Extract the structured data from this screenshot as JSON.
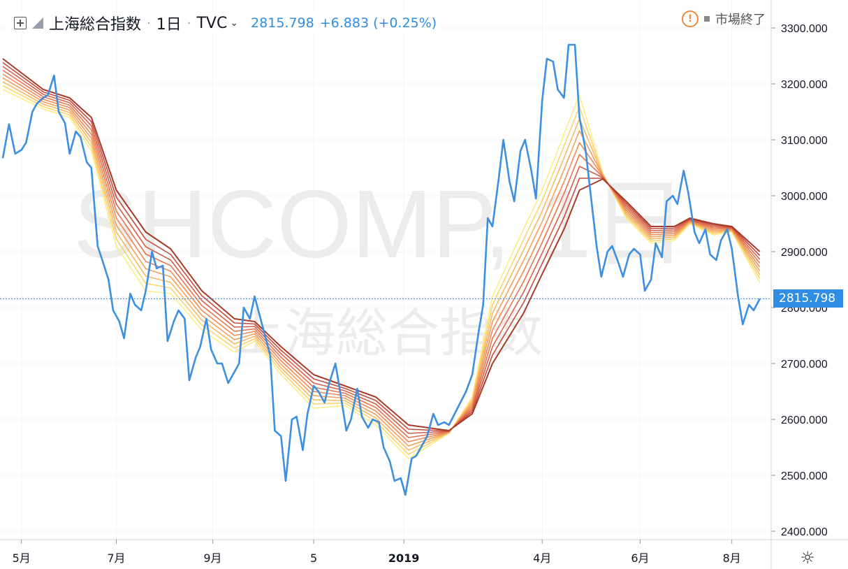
{
  "header": {
    "symbol": "上海総合指数",
    "interval": "1日",
    "exchange": "TVC",
    "price": "2815.798",
    "change": "+6.883 (+0.25%)",
    "market_status": "市場終了"
  },
  "watermark": {
    "ticker": "SHCOMP, 1日",
    "name": "上海総合指数"
  },
  "last_price_label": "2815.798",
  "colors": {
    "price_line": "#3d8fdf",
    "ribbon": [
      "#fdec87",
      "#fbd46f",
      "#f8b864",
      "#f3a05b",
      "#ee8a55",
      "#e5744f",
      "#d6604a",
      "#c44c3c",
      "#a83a28"
    ]
  },
  "chart_data": {
    "type": "line",
    "y_ticks": [
      "3300.000",
      "3200.000",
      "3100.000",
      "3000.000",
      "2900.000",
      "2800.000",
      "2700.000",
      "2600.000",
      "2500.000",
      "2400.000"
    ],
    "ylim": [
      2385,
      3350
    ],
    "x_ticks": [
      "5月",
      "7月",
      "9月",
      "5",
      "2019",
      "4月",
      "6月",
      "8月"
    ],
    "x_tick_dates": [
      "2018-05-01",
      "2018-07-01",
      "2018-09-01",
      "2018-11-05",
      "2019-01-02",
      "2019-04-01",
      "2019-06-03",
      "2019-08-01"
    ],
    "xlim": [
      "2018-04-19",
      "2019-08-20"
    ],
    "series": [
      {
        "key": "price",
        "points": [
          [
            "2018-04-19",
            3067
          ],
          [
            "2018-04-23",
            3128
          ],
          [
            "2018-04-27",
            3075
          ],
          [
            "2018-05-01",
            3082
          ],
          [
            "2018-05-04",
            3095
          ],
          [
            "2018-05-08",
            3150
          ],
          [
            "2018-05-11",
            3165
          ],
          [
            "2018-05-15",
            3175
          ],
          [
            "2018-05-18",
            3180
          ],
          [
            "2018-05-22",
            3215
          ],
          [
            "2018-05-25",
            3150
          ],
          [
            "2018-05-29",
            3130
          ],
          [
            "2018-06-01",
            3075
          ],
          [
            "2018-06-05",
            3115
          ],
          [
            "2018-06-08",
            3105
          ],
          [
            "2018-06-12",
            3060
          ],
          [
            "2018-06-15",
            3050
          ],
          [
            "2018-06-19",
            2910
          ],
          [
            "2018-06-22",
            2885
          ],
          [
            "2018-06-26",
            2850
          ],
          [
            "2018-06-29",
            2795
          ],
          [
            "2018-07-03",
            2775
          ],
          [
            "2018-07-06",
            2745
          ],
          [
            "2018-07-10",
            2825
          ],
          [
            "2018-07-13",
            2805
          ],
          [
            "2018-07-17",
            2795
          ],
          [
            "2018-07-20",
            2830
          ],
          [
            "2018-07-24",
            2900
          ],
          [
            "2018-07-27",
            2870
          ],
          [
            "2018-07-31",
            2875
          ],
          [
            "2018-08-03",
            2740
          ],
          [
            "2018-08-07",
            2775
          ],
          [
            "2018-08-10",
            2795
          ],
          [
            "2018-08-14",
            2780
          ],
          [
            "2018-08-17",
            2670
          ],
          [
            "2018-08-21",
            2710
          ],
          [
            "2018-08-24",
            2730
          ],
          [
            "2018-08-28",
            2780
          ],
          [
            "2018-08-31",
            2725
          ],
          [
            "2018-09-04",
            2700
          ],
          [
            "2018-09-07",
            2700
          ],
          [
            "2018-09-11",
            2665
          ],
          [
            "2018-09-14",
            2680
          ],
          [
            "2018-09-18",
            2700
          ],
          [
            "2018-09-21",
            2800
          ],
          [
            "2018-09-25",
            2780
          ],
          [
            "2018-09-28",
            2820
          ],
          [
            "2018-10-08",
            2715
          ],
          [
            "2018-10-11",
            2580
          ],
          [
            "2018-10-15",
            2570
          ],
          [
            "2018-10-18",
            2490
          ],
          [
            "2018-10-22",
            2600
          ],
          [
            "2018-10-25",
            2605
          ],
          [
            "2018-10-29",
            2545
          ],
          [
            "2018-11-01",
            2610
          ],
          [
            "2018-11-05",
            2660
          ],
          [
            "2018-11-08",
            2650
          ],
          [
            "2018-11-12",
            2630
          ],
          [
            "2018-11-15",
            2665
          ],
          [
            "2018-11-19",
            2700
          ],
          [
            "2018-11-22",
            2650
          ],
          [
            "2018-11-26",
            2580
          ],
          [
            "2018-11-29",
            2600
          ],
          [
            "2018-12-03",
            2655
          ],
          [
            "2018-12-06",
            2605
          ],
          [
            "2018-12-10",
            2585
          ],
          [
            "2018-12-13",
            2600
          ],
          [
            "2018-12-17",
            2595
          ],
          [
            "2018-12-20",
            2550
          ],
          [
            "2018-12-24",
            2525
          ],
          [
            "2018-12-27",
            2490
          ],
          [
            "2018-12-31",
            2495
          ],
          [
            "2019-01-03",
            2465
          ],
          [
            "2019-01-07",
            2530
          ],
          [
            "2019-01-10",
            2535
          ],
          [
            "2019-01-14",
            2555
          ],
          [
            "2019-01-17",
            2570
          ],
          [
            "2019-01-21",
            2610
          ],
          [
            "2019-01-24",
            2590
          ],
          [
            "2019-01-28",
            2595
          ],
          [
            "2019-01-31",
            2590
          ],
          [
            "2019-02-11",
            2650
          ],
          [
            "2019-02-15",
            2680
          ],
          [
            "2019-02-19",
            2755
          ],
          [
            "2019-02-22",
            2805
          ],
          [
            "2019-02-25",
            2960
          ],
          [
            "2019-02-28",
            2945
          ],
          [
            "2019-03-04",
            3030
          ],
          [
            "2019-03-07",
            3100
          ],
          [
            "2019-03-11",
            3025
          ],
          [
            "2019-03-14",
            2990
          ],
          [
            "2019-03-18",
            3080
          ],
          [
            "2019-03-21",
            3100
          ],
          [
            "2019-03-25",
            3045
          ],
          [
            "2019-03-28",
            2995
          ],
          [
            "2019-04-01",
            3170
          ],
          [
            "2019-04-04",
            3245
          ],
          [
            "2019-04-08",
            3240
          ],
          [
            "2019-04-11",
            3190
          ],
          [
            "2019-04-15",
            3175
          ],
          [
            "2019-04-18",
            3270
          ],
          [
            "2019-04-22",
            3270
          ],
          [
            "2019-04-25",
            3140
          ],
          [
            "2019-04-29",
            3080
          ],
          [
            "2019-05-06",
            2910
          ],
          [
            "2019-05-09",
            2855
          ],
          [
            "2019-05-13",
            2900
          ],
          [
            "2019-05-16",
            2910
          ],
          [
            "2019-05-20",
            2880
          ],
          [
            "2019-05-23",
            2855
          ],
          [
            "2019-05-27",
            2895
          ],
          [
            "2019-05-30",
            2905
          ],
          [
            "2019-06-03",
            2895
          ],
          [
            "2019-06-06",
            2830
          ],
          [
            "2019-06-10",
            2850
          ],
          [
            "2019-06-13",
            2915
          ],
          [
            "2019-06-17",
            2890
          ],
          [
            "2019-06-20",
            2990
          ],
          [
            "2019-06-24",
            3000
          ],
          [
            "2019-06-27",
            2985
          ],
          [
            "2019-07-01",
            3045
          ],
          [
            "2019-07-04",
            3005
          ],
          [
            "2019-07-08",
            2935
          ],
          [
            "2019-07-11",
            2915
          ],
          [
            "2019-07-15",
            2940
          ],
          [
            "2019-07-18",
            2895
          ],
          [
            "2019-07-22",
            2885
          ],
          [
            "2019-07-25",
            2920
          ],
          [
            "2019-07-29",
            2940
          ],
          [
            "2019-08-01",
            2905
          ],
          [
            "2019-08-05",
            2820
          ],
          [
            "2019-08-08",
            2770
          ],
          [
            "2019-08-12",
            2805
          ],
          [
            "2019-08-15",
            2795
          ],
          [
            "2019-08-19",
            2815.798
          ]
        ]
      },
      {
        "key": "ribbon-fast",
        "points": [
          [
            "2018-04-19",
            3190
          ],
          [
            "2018-05-15",
            3155
          ],
          [
            "2018-06-01",
            3140
          ],
          [
            "2018-06-15",
            3080
          ],
          [
            "2018-07-01",
            2910
          ],
          [
            "2018-07-20",
            2830
          ],
          [
            "2018-08-05",
            2825
          ],
          [
            "2018-08-25",
            2760
          ],
          [
            "2018-09-15",
            2720
          ],
          [
            "2018-09-28",
            2740
          ],
          [
            "2018-10-15",
            2680
          ],
          [
            "2018-11-05",
            2620
          ],
          [
            "2018-11-25",
            2625
          ],
          [
            "2018-12-15",
            2590
          ],
          [
            "2019-01-05",
            2530
          ],
          [
            "2019-01-31",
            2575
          ],
          [
            "2019-02-15",
            2640
          ],
          [
            "2019-02-28",
            2820
          ],
          [
            "2019-03-20",
            2940
          ],
          [
            "2019-04-01",
            3010
          ],
          [
            "2019-04-15",
            3110
          ],
          [
            "2019-04-25",
            3180
          ],
          [
            "2019-05-10",
            3040
          ],
          [
            "2019-05-25",
            2960
          ],
          [
            "2019-06-10",
            2915
          ],
          [
            "2019-06-25",
            2920
          ],
          [
            "2019-07-05",
            2950
          ],
          [
            "2019-07-20",
            2930
          ],
          [
            "2019-08-01",
            2935
          ],
          [
            "2019-08-19",
            2845
          ]
        ]
      },
      {
        "key": "ribbon-slow",
        "points": [
          [
            "2018-04-19",
            3245
          ],
          [
            "2018-05-15",
            3190
          ],
          [
            "2018-06-01",
            3175
          ],
          [
            "2018-06-15",
            3140
          ],
          [
            "2018-07-01",
            3010
          ],
          [
            "2018-07-20",
            2935
          ],
          [
            "2018-08-05",
            2905
          ],
          [
            "2018-08-25",
            2830
          ],
          [
            "2018-09-15",
            2780
          ],
          [
            "2018-09-28",
            2775
          ],
          [
            "2018-10-15",
            2730
          ],
          [
            "2018-11-05",
            2680
          ],
          [
            "2018-11-25",
            2660
          ],
          [
            "2018-12-15",
            2640
          ],
          [
            "2019-01-05",
            2590
          ],
          [
            "2019-01-31",
            2580
          ],
          [
            "2019-02-15",
            2610
          ],
          [
            "2019-02-28",
            2700
          ],
          [
            "2019-03-20",
            2790
          ],
          [
            "2019-04-01",
            2860
          ],
          [
            "2019-04-15",
            2940
          ],
          [
            "2019-04-25",
            3010
          ],
          [
            "2019-05-10",
            3030
          ],
          [
            "2019-05-25",
            2990
          ],
          [
            "2019-06-10",
            2945
          ],
          [
            "2019-06-25",
            2945
          ],
          [
            "2019-07-05",
            2960
          ],
          [
            "2019-07-20",
            2950
          ],
          [
            "2019-08-01",
            2945
          ],
          [
            "2019-08-19",
            2900
          ]
        ]
      }
    ]
  }
}
